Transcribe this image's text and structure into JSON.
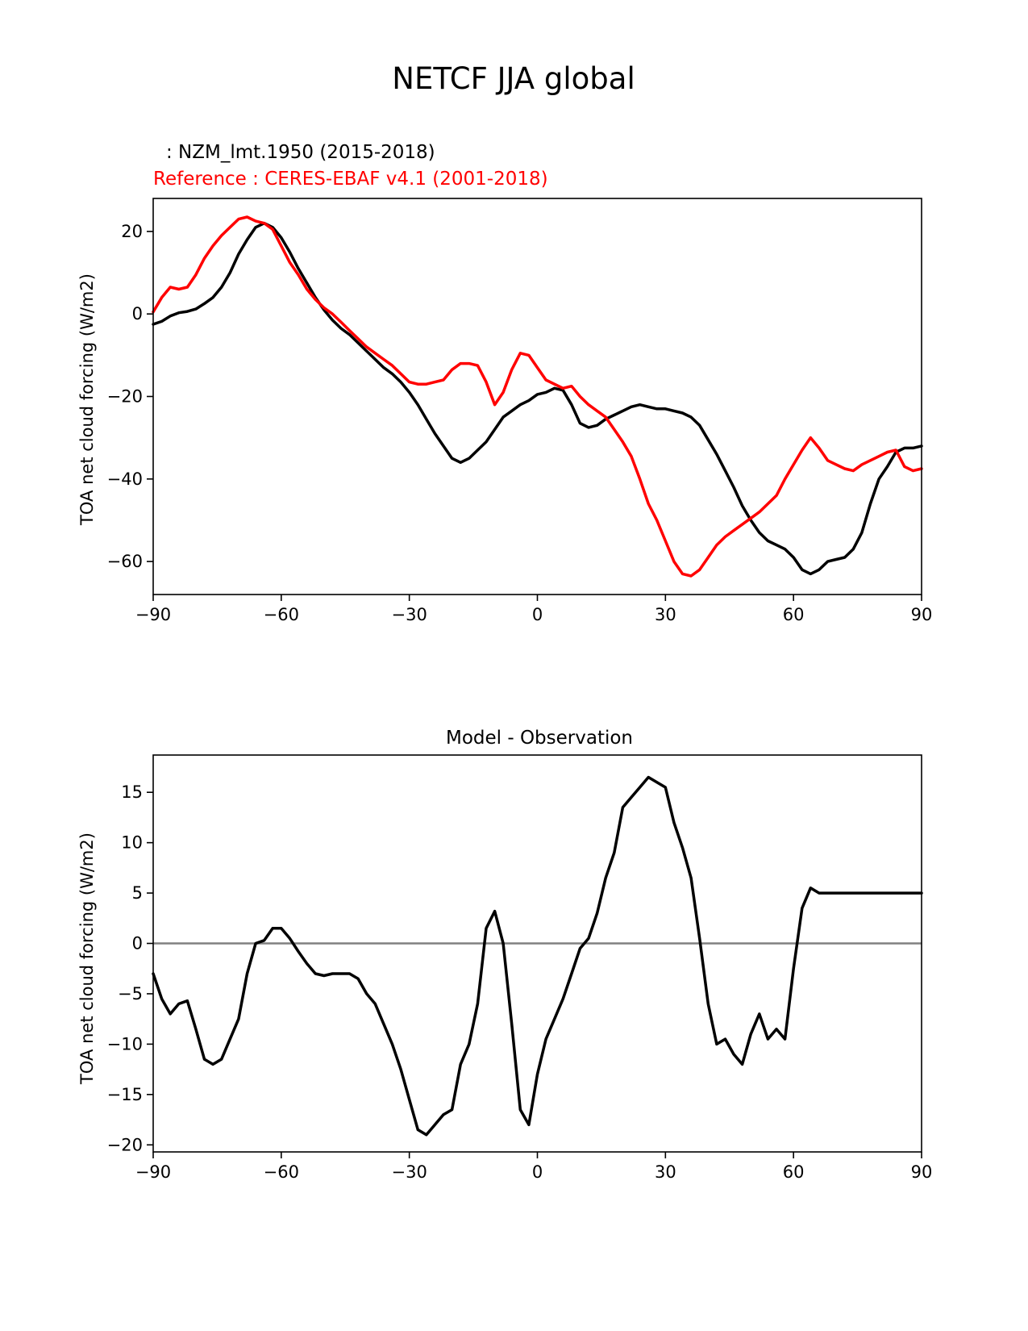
{
  "figure_title": "NETCF JJA global",
  "chart_data": [
    {
      "type": "line",
      "test_label": ": NZM_lmt.1950 (2015-2018)",
      "reference_label": "Reference : CERES-EBAF v4.1 (2001-2018)",
      "xlabel": "",
      "ylabel": "TOA net cloud forcing (W/m2)",
      "xlim": [
        -90,
        90
      ],
      "ylim": [
        -68,
        28
      ],
      "xticks": [
        -90,
        -60,
        -30,
        0,
        30,
        60,
        90
      ],
      "yticks": [
        20,
        0,
        -20,
        -40,
        -60
      ],
      "xtick_labels": [
        "−90",
        "−60",
        "−30",
        "0",
        "30",
        "60",
        "90"
      ],
      "ytick_labels": [
        "20",
        "0",
        "−20",
        "−40",
        "−60"
      ],
      "series": [
        {
          "name": "NZM_lmt.1950 (2015-2018)",
          "color": "#000000",
          "x": [
            -90,
            -88,
            -86,
            -84,
            -82,
            -80,
            -78,
            -76,
            -74,
            -72,
            -70,
            -68,
            -66,
            -64,
            -62,
            -60,
            -58,
            -56,
            -54,
            -52,
            -50,
            -48,
            -46,
            -44,
            -42,
            -40,
            -38,
            -36,
            -34,
            -32,
            -30,
            -28,
            -26,
            -24,
            -22,
            -20,
            -18,
            -16,
            -14,
            -12,
            -10,
            -8,
            -6,
            -4,
            -2,
            0,
            2,
            4,
            6,
            8,
            10,
            12,
            14,
            16,
            18,
            20,
            22,
            24,
            26,
            28,
            30,
            32,
            34,
            36,
            38,
            40,
            42,
            44,
            46,
            48,
            50,
            52,
            54,
            56,
            58,
            60,
            62,
            64,
            66,
            68,
            70,
            72,
            74,
            76,
            78,
            80,
            82,
            84,
            86,
            88,
            90
          ],
          "y": [
            -2.5,
            -1.8,
            -0.5,
            0.3,
            0.6,
            1.2,
            2.5,
            4.0,
            6.5,
            10.0,
            14.5,
            18.0,
            21.0,
            22.0,
            21.0,
            18.5,
            15.0,
            11.0,
            7.5,
            4.0,
            1.0,
            -1.5,
            -3.5,
            -5.0,
            -7.0,
            -9.0,
            -11.0,
            -13.0,
            -14.5,
            -16.5,
            -19.0,
            -22.0,
            -25.5,
            -29.0,
            -32.0,
            -35.0,
            -36.0,
            -35.0,
            -33.0,
            -31.0,
            -28.0,
            -25.0,
            -23.5,
            -22.0,
            -21.0,
            -19.5,
            -19.0,
            -18.0,
            -18.5,
            -22.0,
            -26.5,
            -27.5,
            -27.0,
            -25.5,
            -24.5,
            -23.5,
            -22.5,
            -22.0,
            -22.5,
            -23.0,
            -23.0,
            -23.5,
            -24.0,
            -25.0,
            -27.0,
            -30.5,
            -34.0,
            -38.0,
            -42.0,
            -46.5,
            -50.0,
            -53.0,
            -55.0,
            -56.0,
            -57.0,
            -59.0,
            -62.0,
            -63.0,
            -62.0,
            -60.0,
            -59.5,
            -59.0,
            -57.0,
            -53.0,
            -46.0,
            -40.0,
            -37.0,
            -33.5,
            -32.5,
            -32.5,
            -32.0
          ]
        },
        {
          "name": "Reference : CERES-EBAF v4.1 (2001-2018)",
          "color": "#ff0000",
          "x": [
            -90,
            -88,
            -86,
            -84,
            -82,
            -80,
            -78,
            -76,
            -74,
            -72,
            -70,
            -68,
            -66,
            -64,
            -62,
            -60,
            -58,
            -56,
            -54,
            -52,
            -50,
            -48,
            -46,
            -44,
            -42,
            -40,
            -38,
            -36,
            -34,
            -32,
            -30,
            -28,
            -26,
            -24,
            -22,
            -20,
            -18,
            -16,
            -14,
            -12,
            -10,
            -8,
            -6,
            -4,
            -2,
            0,
            2,
            4,
            6,
            8,
            10,
            12,
            14,
            16,
            18,
            20,
            22,
            24,
            26,
            28,
            30,
            32,
            34,
            36,
            38,
            40,
            42,
            44,
            46,
            48,
            50,
            52,
            54,
            56,
            58,
            60,
            62,
            64,
            66,
            68,
            70,
            72,
            74,
            76,
            78,
            80,
            82,
            84,
            86,
            88,
            90
          ],
          "y": [
            0.5,
            4.0,
            6.5,
            6.0,
            6.5,
            9.5,
            13.5,
            16.5,
            19.0,
            21.0,
            23.0,
            23.5,
            22.5,
            22.0,
            20.5,
            16.5,
            12.5,
            9.5,
            6.0,
            3.5,
            1.5,
            0.0,
            -2.0,
            -4.0,
            -6.0,
            -8.0,
            -9.5,
            -11.0,
            -12.5,
            -14.5,
            -16.5,
            -17.0,
            -17.0,
            -16.5,
            -16.0,
            -13.5,
            -12.0,
            -12.0,
            -12.5,
            -16.5,
            -22.0,
            -19.0,
            -13.5,
            -9.5,
            -10.0,
            -13.0,
            -16.0,
            -17.0,
            -18.0,
            -17.5,
            -20.0,
            -22.0,
            -23.5,
            -25.0,
            -28.0,
            -31.0,
            -34.5,
            -40.0,
            -46.0,
            -50.0,
            -55.0,
            -60.0,
            -63.0,
            -63.5,
            -62.0,
            -59.0,
            -56.0,
            -54.0,
            -52.5,
            -51.0,
            -49.5,
            -48.0,
            -46.0,
            -44.0,
            -40.0,
            -36.5,
            -33.0,
            -30.0,
            -32.5,
            -35.5,
            -36.5,
            -37.5,
            -38.0,
            -36.5,
            -35.5,
            -34.5,
            -33.5,
            -33.0,
            -37.0,
            -38.0,
            -37.5
          ],
          "x_override": [
            -90,
            -88,
            -86,
            -84,
            -82,
            -80,
            -78,
            -76,
            -74,
            -72,
            -70,
            -68,
            -66,
            -64,
            -62,
            -60,
            -58,
            -56,
            -54,
            -52,
            -50,
            -48,
            -46,
            -44,
            -42,
            -40,
            -38,
            -36,
            -34,
            -32,
            -30,
            -28,
            -26,
            -24,
            -22,
            -20,
            -18,
            -16,
            -14,
            -12,
            -10,
            -8,
            -6,
            -4,
            -2,
            0,
            2,
            4,
            6,
            8,
            10,
            12,
            14,
            16,
            18,
            20,
            22,
            24,
            26,
            28,
            30,
            32,
            34,
            36,
            38,
            40,
            42,
            44,
            46,
            48,
            50,
            52,
            54,
            56,
            58,
            60,
            62,
            64,
            66,
            68,
            70,
            72,
            74,
            76,
            78,
            80,
            82,
            84,
            86,
            88,
            90
          ]
        }
      ]
    },
    {
      "type": "line",
      "title": "Model - Observation",
      "xlabel": "",
      "ylabel": "TOA net cloud forcing (W/m2)",
      "xlim": [
        -90,
        90
      ],
      "ylim": [
        -20.7,
        18.7
      ],
      "xticks": [
        -90,
        -60,
        -30,
        0,
        30,
        60,
        90
      ],
      "yticks": [
        15,
        10,
        5,
        0,
        -5,
        -10,
        -15,
        -20
      ],
      "xtick_labels": [
        "−90",
        "−60",
        "−30",
        "0",
        "30",
        "60",
        "90"
      ],
      "ytick_labels": [
        "15",
        "10",
        "5",
        "0",
        "−5",
        "−10",
        "−15",
        "−20"
      ],
      "zero_line": 0,
      "series": [
        {
          "name": "Model - Observation",
          "color": "#000000",
          "x": [
            -90,
            -88,
            -86,
            -84,
            -82,
            -80,
            -78,
            -76,
            -74,
            -72,
            -70,
            -68,
            -66,
            -64,
            -62,
            -60,
            -58,
            -56,
            -54,
            -52,
            -50,
            -48,
            -46,
            -44,
            -42,
            -40,
            -38,
            -36,
            -34,
            -32,
            -30,
            -28,
            -26,
            -24,
            -22,
            -20,
            -18,
            -16,
            -14,
            -12,
            -10,
            -8,
            -6,
            -4,
            -2,
            0,
            2,
            4,
            6,
            8,
            10,
            12,
            14,
            16,
            18,
            20,
            22,
            24,
            26,
            28,
            30,
            32,
            34,
            36,
            38,
            40,
            42,
            44,
            46,
            48,
            50,
            52,
            54,
            56,
            58,
            60,
            62,
            64,
            66,
            68,
            70,
            72,
            74,
            76,
            78,
            80,
            82,
            84,
            86,
            88,
            90
          ],
          "y": [
            -3.0,
            -5.5,
            -7.0,
            -6.0,
            -5.7,
            -8.5,
            -11.5,
            -12.0,
            -11.5,
            -9.5,
            -7.5,
            -3.0,
            0.0,
            0.3,
            1.5,
            1.5,
            0.5,
            -0.8,
            -2.0,
            -3.0,
            -3.2,
            -3.0,
            -3.0,
            -3.0,
            -3.5,
            -5.0,
            -6.0,
            -8.0,
            -10.0,
            -12.5,
            -15.5,
            -18.5,
            -19.0,
            -18.0,
            -17.0,
            -16.5,
            -12.0,
            -10.0,
            -6.0,
            1.5,
            3.2,
            0.0,
            -8.0,
            -16.5,
            -18.0,
            -13.0,
            -9.5,
            -7.5,
            -5.5,
            -3.0,
            -0.5,
            0.5,
            3.0,
            6.5,
            9.0,
            13.5,
            14.5,
            15.5,
            16.5,
            16.0,
            15.5,
            12.0,
            9.5,
            6.5,
            0.5,
            -6.0,
            -10.0,
            -9.5,
            -11.0,
            -12.0,
            -9.0,
            -7.0,
            -9.5,
            -8.5,
            -9.5,
            -2.5,
            3.5,
            5.5,
            5.0,
            5.0,
            5.0,
            5.0,
            5.0,
            5.0,
            5.0,
            5.0,
            5.0,
            5.0,
            5.0,
            5.0,
            5.0
          ]
        }
      ]
    }
  ]
}
